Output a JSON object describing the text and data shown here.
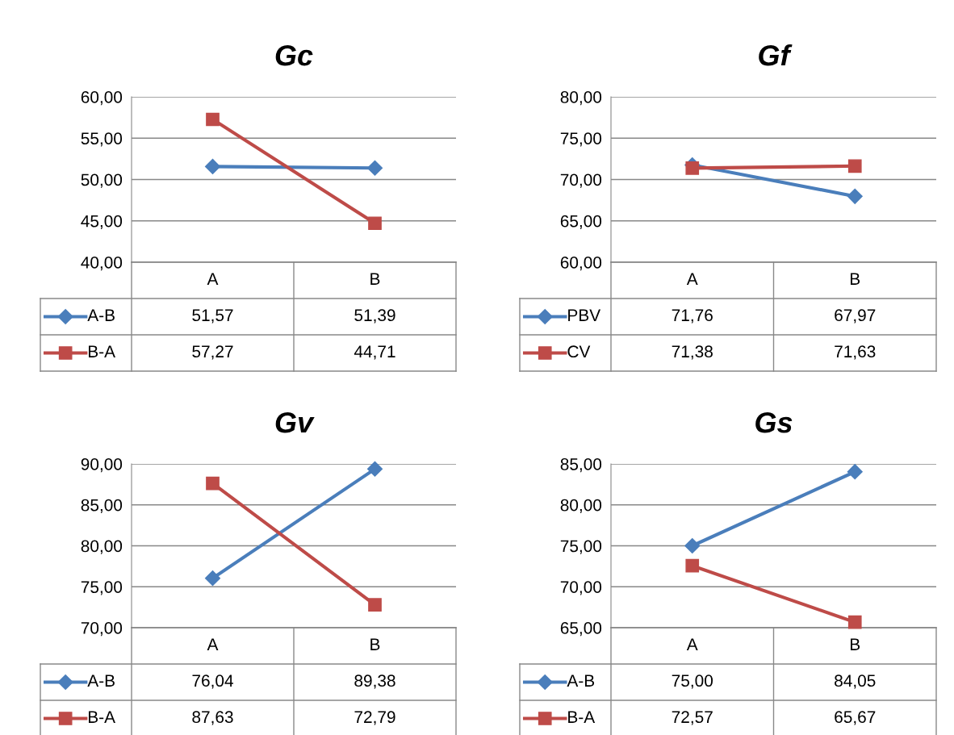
{
  "chart_data": [
    {
      "type": "line",
      "title": "Gc",
      "categories": [
        "A",
        "B"
      ],
      "ylim": [
        40,
        60
      ],
      "yticks": [
        {
          "value": 40,
          "label": "40,00"
        },
        {
          "value": 45,
          "label": "45,00"
        },
        {
          "value": 50,
          "label": "50,00"
        },
        {
          "value": 55,
          "label": "55,00"
        },
        {
          "value": 60,
          "label": "60,00"
        }
      ],
      "grid": "y",
      "legend": "bottom",
      "series": [
        {
          "name": "A-B",
          "color": "#4a7ebb",
          "marker": "diamond",
          "values": [
            51.57,
            51.39
          ],
          "value_labels": [
            "51,57",
            "51,39"
          ]
        },
        {
          "name": "B-A",
          "color": "#be4b48",
          "marker": "square",
          "values": [
            57.27,
            44.71
          ],
          "value_labels": [
            "57,27",
            "44,71"
          ]
        }
      ]
    },
    {
      "type": "line",
      "title": "Gf",
      "categories": [
        "A",
        "B"
      ],
      "ylim": [
        60,
        80
      ],
      "yticks": [
        {
          "value": 60,
          "label": "60,00"
        },
        {
          "value": 65,
          "label": "65,00"
        },
        {
          "value": 70,
          "label": "70,00"
        },
        {
          "value": 75,
          "label": "75,00"
        },
        {
          "value": 80,
          "label": "80,00"
        }
      ],
      "grid": "y",
      "legend": "bottom",
      "series": [
        {
          "name": "PBV",
          "color": "#4a7ebb",
          "marker": "diamond",
          "values": [
            71.76,
            67.97
          ],
          "value_labels": [
            "71,76",
            "67,97"
          ]
        },
        {
          "name": "CV",
          "color": "#be4b48",
          "marker": "square",
          "values": [
            71.38,
            71.63
          ],
          "value_labels": [
            "71,38",
            "71,63"
          ]
        }
      ]
    },
    {
      "type": "line",
      "title": "Gv",
      "categories": [
        "A",
        "B"
      ],
      "ylim": [
        70,
        90
      ],
      "yticks": [
        {
          "value": 70,
          "label": "70,00"
        },
        {
          "value": 75,
          "label": "75,00"
        },
        {
          "value": 80,
          "label": "80,00"
        },
        {
          "value": 85,
          "label": "85,00"
        },
        {
          "value": 90,
          "label": "90,00"
        }
      ],
      "grid": "y",
      "legend": "bottom",
      "series": [
        {
          "name": "A-B",
          "color": "#4a7ebb",
          "marker": "diamond",
          "values": [
            76.04,
            89.38
          ],
          "value_labels": [
            "76,04",
            "89,38"
          ]
        },
        {
          "name": "B-A",
          "color": "#be4b48",
          "marker": "square",
          "values": [
            87.63,
            72.79
          ],
          "value_labels": [
            "87,63",
            "72,79"
          ]
        }
      ]
    },
    {
      "type": "line",
      "title": "Gs",
      "categories": [
        "A",
        "B"
      ],
      "ylim": [
        65,
        85
      ],
      "yticks": [
        {
          "value": 65,
          "label": "65,00"
        },
        {
          "value": 70,
          "label": "70,00"
        },
        {
          "value": 75,
          "label": "75,00"
        },
        {
          "value": 80,
          "label": "80,00"
        },
        {
          "value": 85,
          "label": "85,00"
        }
      ],
      "grid": "y",
      "legend": "bottom",
      "series": [
        {
          "name": "A-B",
          "color": "#4a7ebb",
          "marker": "diamond",
          "values": [
            75.0,
            84.05
          ],
          "value_labels": [
            "75,00",
            "84,05"
          ]
        },
        {
          "name": "B-A",
          "color": "#be4b48",
          "marker": "square",
          "values": [
            72.57,
            65.67
          ],
          "value_labels": [
            "72,57",
            "65,67"
          ]
        }
      ]
    }
  ]
}
